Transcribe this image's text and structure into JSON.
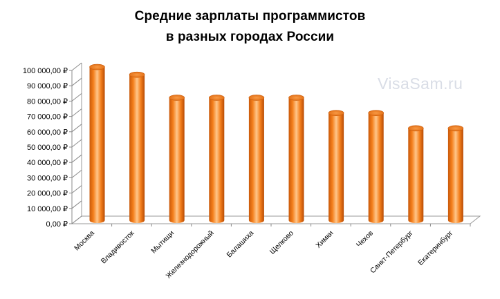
{
  "chart_data": {
    "type": "bar",
    "title_lines": [
      "Средние зарплаты программистов",
      "в разных городах России"
    ],
    "categories": [
      "Москва",
      "Владивосток",
      "Мытищи",
      "Железнодорожный",
      "Балашиха",
      "Щелково",
      "Химки",
      "Чехов",
      "Санкт-Петербург",
      "Екатеринбург"
    ],
    "series": [
      {
        "values": [
          100000,
          95000,
          80000,
          80000,
          80000,
          80000,
          70000,
          70000,
          60000,
          60000
        ]
      }
    ],
    "ylim": [
      0,
      100000
    ],
    "ytick_step": 10000,
    "ytick_labels": [
      "0,00 ₽",
      "10 000,00 ₽",
      "20 000,00 ₽",
      "30 000,00 ₽",
      "40 000,00 ₽",
      "50 000,00 ₽",
      "60 000,00 ₽",
      "70 000,00 ₽",
      "80 000,00 ₽",
      "90 000,00 ₽",
      "100 000,00 ₽"
    ],
    "bar_style": "3d-cylinder",
    "bar_color": "#f47f1c",
    "grid": false,
    "legend": "none"
  },
  "watermark": "VisaSam.ru"
}
